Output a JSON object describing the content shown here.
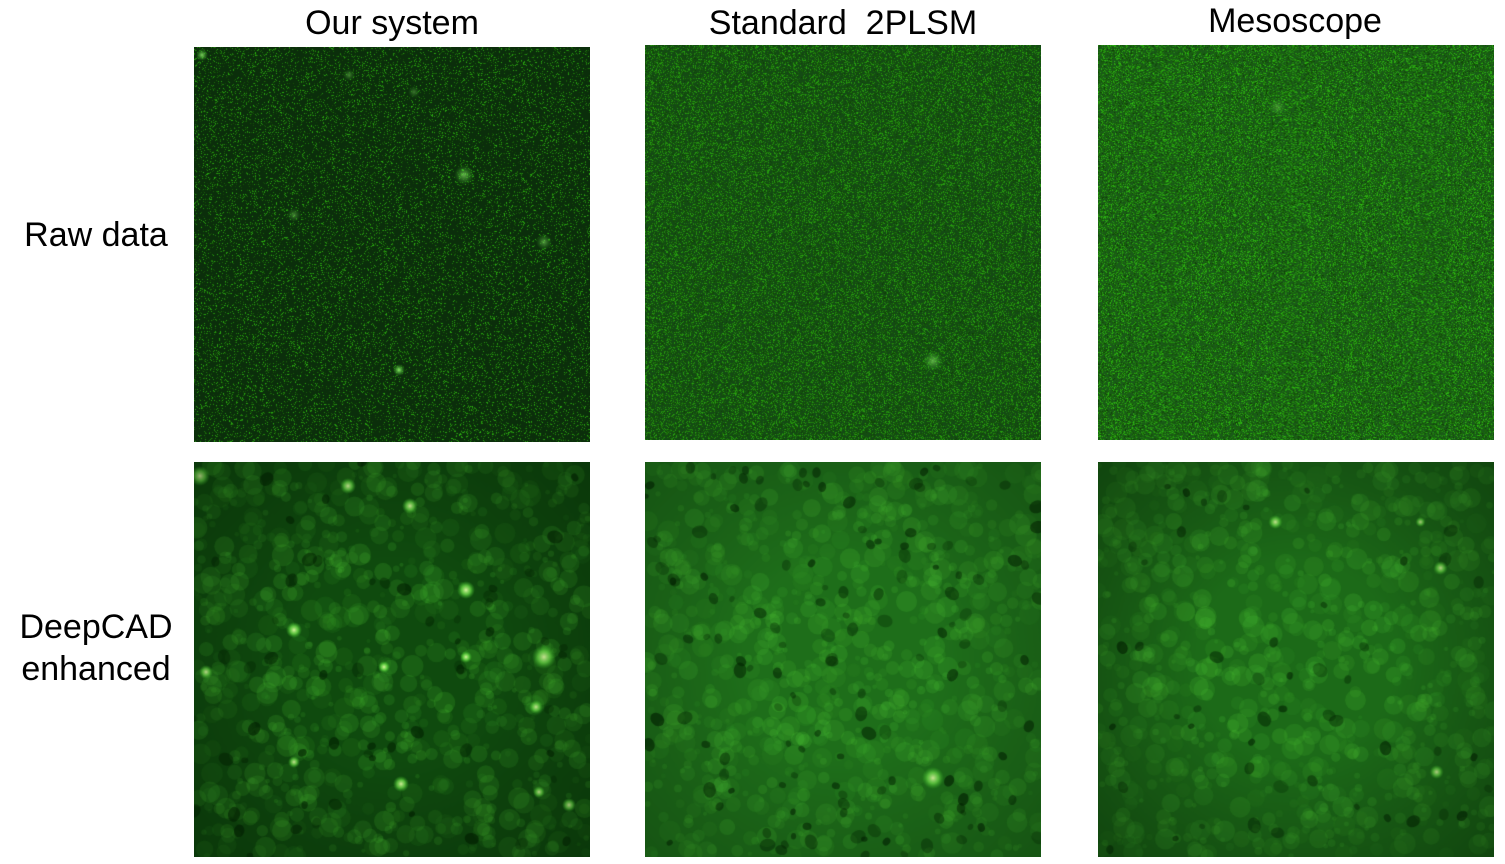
{
  "figure": {
    "columns": [
      {
        "id": "our-system",
        "title": "Our system"
      },
      {
        "id": "standard-2plsm",
        "title": "Standard  2PLSM"
      },
      {
        "id": "mesoscope",
        "title": "Mesoscope"
      }
    ],
    "rows": [
      {
        "id": "raw",
        "label_lines": [
          "Raw data"
        ]
      },
      {
        "id": "deepcad",
        "label_lines": [
          "DeepCAD",
          "enhanced"
        ]
      }
    ],
    "panel_color": "#2ecc2e",
    "panels": [
      {
        "row": "raw",
        "column": "our-system",
        "image": "noisy sparse green speckle on dark background with a few bright cells"
      },
      {
        "row": "raw",
        "column": "standard-2plsm",
        "image": "dense green speckle noise"
      },
      {
        "row": "raw",
        "column": "mesoscope",
        "image": "dense bright green speckle noise"
      },
      {
        "row": "deepcad",
        "column": "our-system",
        "image": "denoised green neurons with processes, dark background"
      },
      {
        "row": "deepcad",
        "column": "standard-2plsm",
        "image": "denoised bright green neuropil with dark cell shadows"
      },
      {
        "row": "deepcad",
        "column": "mesoscope",
        "image": "denoised green neuropil, few bright cells"
      }
    ]
  }
}
